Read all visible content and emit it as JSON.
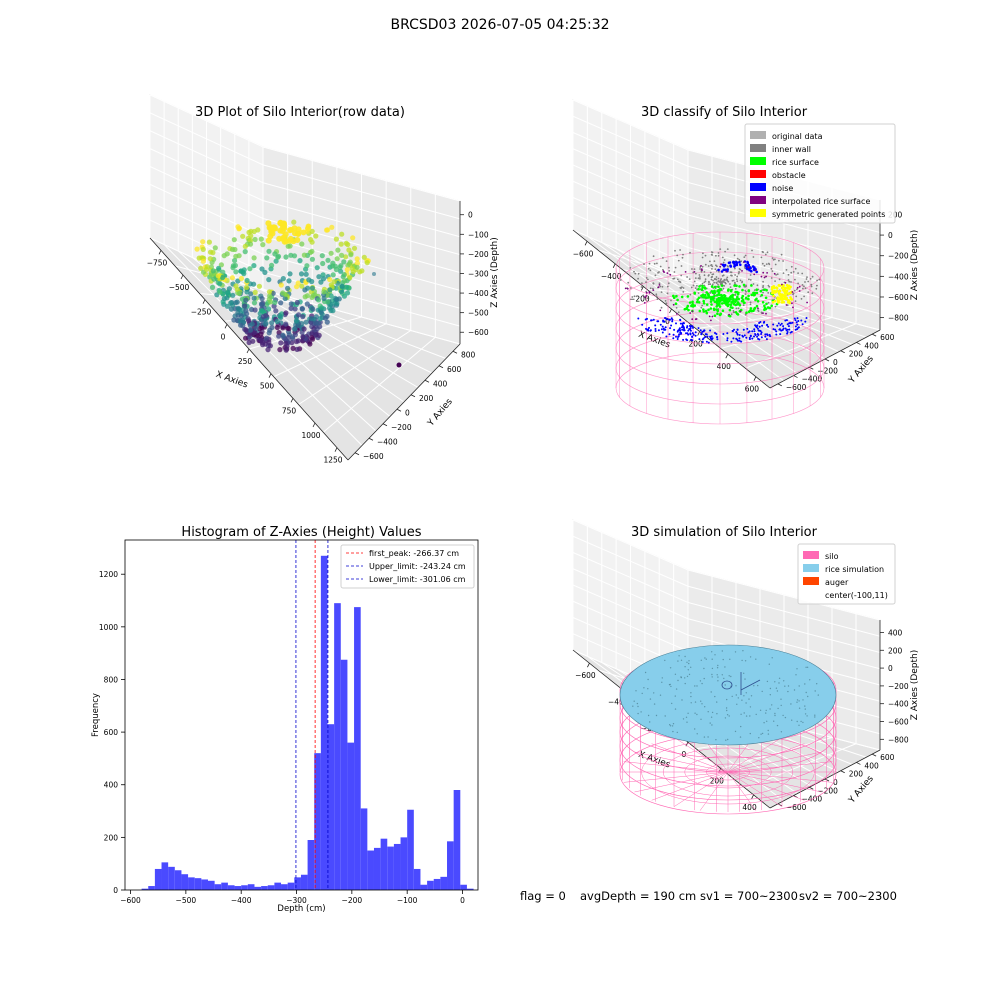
{
  "figure": {
    "suptitle": "BRCSD03 2026-07-05 04:25:32",
    "footer": {
      "flag": "flag = 0",
      "avg_depth": "avgDepth = 190 cm",
      "sv1": "sv1 = 700~2300",
      "sv2": "sv2 = 700~2300"
    }
  },
  "colors": {
    "histogram_bar": "#4a4aff",
    "first_peak": "#ff0000",
    "limits": "#0000cc",
    "silo_wireframe": "#ff69b4",
    "rice_simulation": "#87ceeb",
    "auger": "#ff4500",
    "original_data": "#b0b0b0",
    "inner_wall": "#808080",
    "rice_surface": "#00ff00",
    "obstacle": "#ff0000",
    "noise": "#0000ff",
    "interpolated_rice_surface": "#800080",
    "symmetric_generated_points": "#ffff00"
  },
  "chart_data": [
    {
      "id": "raw",
      "type": "scatter",
      "title": "3D Plot of Silo Interior(row data)",
      "xlabel": "X Axies",
      "ylabel": "Y Axies",
      "zlabel": "Z Axies (Depth)",
      "xticks": [
        "−750",
        "−500",
        "−250",
        "0",
        "250",
        "500",
        "750",
        "1000",
        "1250"
      ],
      "yticks": [
        "−600",
        "−400",
        "−200",
        "0",
        "200",
        "400",
        "600",
        "800"
      ],
      "zticks": [
        "0",
        "−100",
        "−200",
        "−300",
        "−400",
        "−500",
        "−600"
      ],
      "xlim": [
        -850,
        1300
      ],
      "ylim": [
        -650,
        850
      ],
      "zlim": [
        -650,
        20
      ],
      "colormap": "viridis"
    },
    {
      "id": "classify",
      "type": "scatter",
      "title": "3D classify of Silo Interior",
      "xlabel": "X Axies",
      "ylabel": "Y Axies",
      "zlabel": "Z Axies (Depth)",
      "xticks": [
        "−600",
        "−400",
        "−200",
        "0",
        "200",
        "400",
        "600"
      ],
      "yticks": [
        "−600",
        "−400",
        "−200",
        "0",
        "200",
        "400",
        "600"
      ],
      "zticks": [
        "200",
        "0",
        "−200",
        "−400",
        "−600",
        "−800"
      ],
      "xlim": [
        -700,
        650
      ],
      "ylim": [
        -650,
        650
      ],
      "zlim": [
        -950,
        300
      ],
      "legend_position": "top-right",
      "legend": [
        {
          "label": "original data",
          "color": "#b0b0b0"
        },
        {
          "label": "inner wall",
          "color": "#808080"
        },
        {
          "label": "rice surface",
          "color": "#00ff00"
        },
        {
          "label": "obstacle",
          "color": "#ff0000"
        },
        {
          "label": "noise",
          "color": "#0000ff"
        },
        {
          "label": "interpolated rice surface",
          "color": "#800080"
        },
        {
          "label": "symmetric generated points",
          "color": "#ffff00"
        }
      ]
    },
    {
      "id": "histogram",
      "type": "bar",
      "title": "Histogram of Z-Axies (Height) Values",
      "xlabel": "Depth (cm)",
      "ylabel": "Frequency",
      "xlim": [
        -610,
        28
      ],
      "ylim": [
        0,
        1330
      ],
      "xticks": [
        -600,
        -500,
        -400,
        -300,
        -200,
        -100,
        0
      ],
      "yticks": [
        0,
        200,
        400,
        600,
        800,
        1000,
        1200
      ],
      "bin_start": -580,
      "bin_width": 12,
      "values": [
        5,
        15,
        80,
        105,
        88,
        75,
        60,
        48,
        45,
        40,
        35,
        22,
        28,
        18,
        15,
        18,
        22,
        12,
        15,
        18,
        28,
        22,
        28,
        48,
        58,
        190,
        520,
        1270,
        630,
        1090,
        875,
        560,
        1075,
        310,
        150,
        160,
        195,
        165,
        175,
        200,
        305,
        80,
        20,
        35,
        42,
        50,
        185,
        380,
        20,
        5
      ],
      "vlines": [
        {
          "label": "first_peak: -266.37 cm",
          "x": -266.37,
          "color": "#ff0000"
        },
        {
          "label": "Upper_limit: -243.24 cm",
          "x": -243.24,
          "color": "#0000cc"
        },
        {
          "label": "Lower_limit: -301.06 cm",
          "x": -301.06,
          "color": "#0000cc"
        }
      ],
      "legend_position": "top-right"
    },
    {
      "id": "simulation",
      "type": "surface",
      "title": "3D simulation of Silo Interior",
      "xlabel": "X Axies",
      "ylabel": "Y Axies",
      "zlabel": "Z Axies (Depth)",
      "xticks": [
        "−600",
        "−400",
        "−200",
        "0",
        "200",
        "400"
      ],
      "yticks": [
        "−600",
        "−400",
        "−200",
        "0",
        "200",
        "400",
        "600"
      ],
      "zticks": [
        "400",
        "200",
        "0",
        "−200",
        "−400",
        "−600",
        "−800"
      ],
      "xlim": [
        -700,
        520
      ],
      "ylim": [
        -650,
        650
      ],
      "zlim": [
        -950,
        450
      ],
      "legend_position": "top-right",
      "legend": [
        {
          "label": "silo",
          "color": "#ff69b4"
        },
        {
          "label": "rice simulation",
          "color": "#87ceeb"
        },
        {
          "label": "auger",
          "color": "#ff4500"
        },
        {
          "label": "center(-100,11)",
          "color": ""
        }
      ]
    }
  ]
}
